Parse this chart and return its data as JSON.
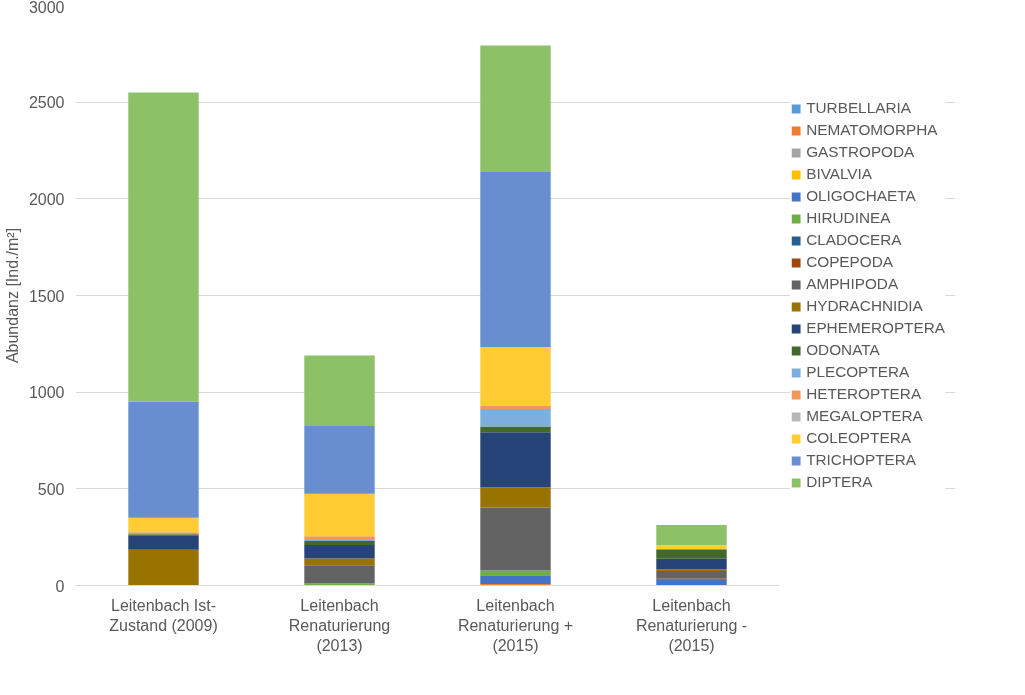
{
  "chart_data": {
    "type": "bar",
    "stacked": true,
    "ylabel": "Abundanz [Ind./m²]",
    "categories": [
      "Leitenbach Ist-\nZustand (2009)",
      "Leitenbach\nRenaturierung\n(2013)",
      "Leitenbach\nRenaturierung +\n(2015)",
      "Leitenbach\nRenaturierung -\n(2015)"
    ],
    "ylim": [
      0,
      3000
    ],
    "yticks": [
      0,
      500,
      1000,
      1500,
      2000,
      2500,
      3000
    ],
    "grid": "y",
    "legend": "right",
    "series": [
      {
        "name": "TURBELLARIA",
        "color": "#5b9bd5",
        "values": [
          0,
          0,
          0,
          0
        ]
      },
      {
        "name": "NEMATOMORPHA",
        "color": "#ed7d31",
        "values": [
          0,
          0,
          8,
          0
        ]
      },
      {
        "name": "GASTROPODA",
        "color": "#a5a5a5",
        "values": [
          0,
          0,
          0,
          0
        ]
      },
      {
        "name": "BIVALVIA",
        "color": "#ffc000",
        "values": [
          0,
          0,
          0,
          0
        ]
      },
      {
        "name": "OLIGOCHAETA",
        "color": "#4472c4",
        "values": [
          0,
          null,
          45,
          30
        ]
      },
      {
        "name": "HIRUDINEA",
        "color": "#70ad47",
        "values": [
          0,
          10,
          25,
          0
        ]
      },
      {
        "name": "CLADOCERA",
        "color": "#255e91",
        "values": [
          0,
          0,
          0,
          0
        ]
      },
      {
        "name": "COPEPODA",
        "color": "#9e480e",
        "values": [
          0,
          0,
          0,
          5
        ]
      },
      {
        "name": "AMPHIPODA",
        "color": "#636363",
        "values": [
          0,
          95,
          325,
          40
        ]
      },
      {
        "name": "HYDRACHNIDIA",
        "color": "#997300",
        "values": [
          185,
          35,
          105,
          8
        ]
      },
      {
        "name": "EPHEMEROPTERA",
        "color": "#264478",
        "values": [
          75,
          70,
          285,
          55
        ]
      },
      {
        "name": "ODONATA",
        "color": "#43682b",
        "values": [
          5,
          20,
          30,
          50
        ]
      },
      {
        "name": "PLECOPTERA",
        "color": "#7cafdd",
        "values": [
          0,
          5,
          90,
          0
        ]
      },
      {
        "name": "HETEROPTERA",
        "color": "#f1975a",
        "values": [
          10,
          20,
          15,
          0
        ]
      },
      {
        "name": "MEGALOPTERA",
        "color": "#b7b7b7",
        "values": [
          0,
          0,
          0,
          0
        ]
      },
      {
        "name": "COLEOPTERA",
        "color": "#ffcd33",
        "values": [
          75,
          220,
          305,
          20
        ]
      },
      {
        "name": "TRICHOPTERA",
        "color": "#698ed0",
        "values": [
          600,
          350,
          910,
          0
        ]
      },
      {
        "name": "DIPTERA",
        "color": "#8cc168",
        "values": [
          1600,
          365,
          650,
          105
        ]
      }
    ]
  }
}
